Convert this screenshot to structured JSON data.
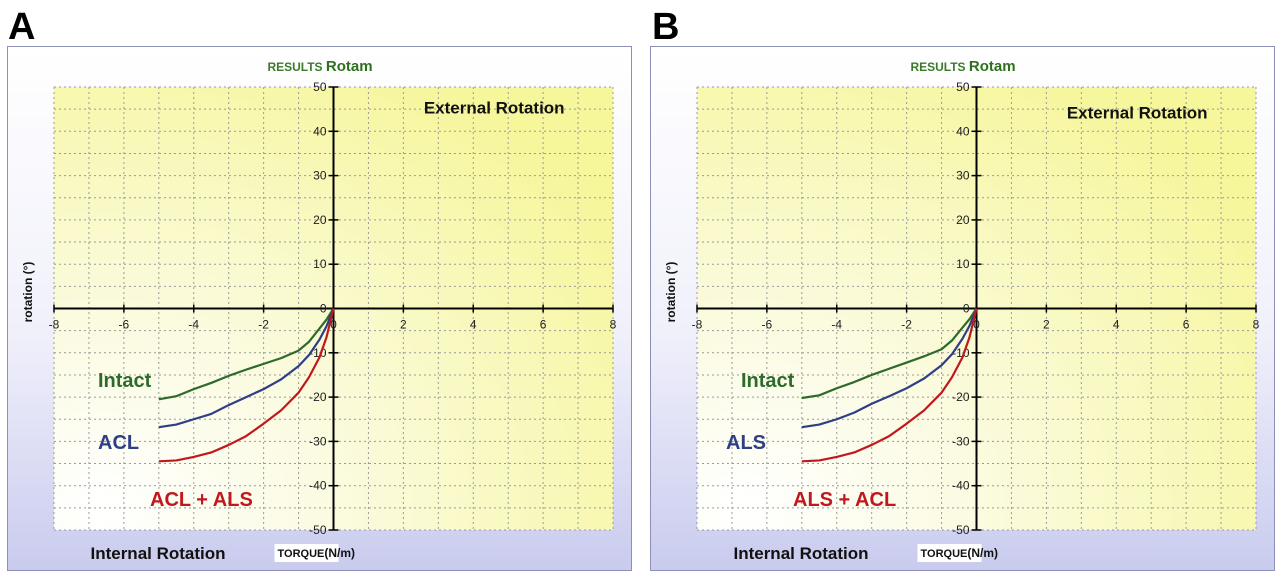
{
  "chart_data": [
    {
      "panel_letter": "A",
      "type": "line",
      "title_prefix": "RESULTS",
      "title": "Rotam",
      "xlabel_main": "TORQUE",
      "xlabel_unit": "(N/m)",
      "ylabel": "rotation (°)",
      "xlim": [
        -8,
        8
      ],
      "ylim": [
        -50,
        50
      ],
      "xticks": [
        "-8",
        "-6",
        "-4",
        "-2",
        "0",
        "2",
        "4",
        "6",
        "8"
      ],
      "yticks": [
        "50",
        "40",
        "30",
        "20",
        "10",
        "0",
        "-10",
        "-20",
        "-30",
        "-40",
        "-50"
      ],
      "grid": true,
      "annotations": {
        "top_right": "External  Rotation",
        "bottom_left": "Internal  Rotation"
      },
      "series": [
        {
          "name": "Intact",
          "color": "#2e6b2a",
          "x": [
            -5.0,
            -4.5,
            -4.0,
            -3.5,
            -3.0,
            -2.5,
            -2.0,
            -1.5,
            -1.0,
            -0.7,
            -0.4,
            -0.2,
            0.0
          ],
          "y": [
            -20.5,
            -19.8,
            -18.2,
            -16.8,
            -15.2,
            -13.8,
            -12.5,
            -11.2,
            -9.5,
            -7.5,
            -4.5,
            -2.5,
            0.0
          ]
        },
        {
          "name": "ACL",
          "color": "#2e3f86",
          "x": [
            -5.0,
            -4.5,
            -4.0,
            -3.5,
            -3.0,
            -2.5,
            -2.0,
            -1.5,
            -1.0,
            -0.7,
            -0.4,
            -0.2,
            0.0
          ],
          "y": [
            -26.8,
            -26.2,
            -25.0,
            -23.8,
            -21.8,
            -20.0,
            -18.2,
            -16.0,
            -13.0,
            -10.5,
            -7.0,
            -4.0,
            0.0
          ]
        },
        {
          "name": "ACL + ALS",
          "color": "#c0181c",
          "x": [
            -5.0,
            -4.5,
            -4.0,
            -3.5,
            -3.0,
            -2.5,
            -2.0,
            -1.5,
            -1.0,
            -0.7,
            -0.4,
            -0.2,
            0.0
          ],
          "y": [
            -34.5,
            -34.3,
            -33.5,
            -32.5,
            -30.8,
            -28.8,
            -26.0,
            -23.0,
            -19.0,
            -15.5,
            -11.0,
            -6.5,
            0.0
          ]
        }
      ]
    },
    {
      "panel_letter": "B",
      "type": "line",
      "title_prefix": "RESULTS",
      "title": "Rotam",
      "xlabel_main": "TORQUE",
      "xlabel_unit": "(N/m)",
      "ylabel": "rotation (°)",
      "xlim": [
        -8,
        8
      ],
      "ylim": [
        -50,
        50
      ],
      "xticks": [
        "-8",
        "-6",
        "-4",
        "-2",
        "0",
        "2",
        "4",
        "6",
        "8"
      ],
      "yticks": [
        "50",
        "40",
        "30",
        "20",
        "10",
        "0",
        "-10",
        "-20",
        "-30",
        "-40",
        "-50"
      ],
      "grid": true,
      "annotations": {
        "top_right": "External  Rotation",
        "bottom_left": "Internal  Rotation"
      },
      "series": [
        {
          "name": "Intact",
          "color": "#2e6b2a",
          "x": [
            -5.0,
            -4.5,
            -4.0,
            -3.5,
            -3.0,
            -2.5,
            -2.0,
            -1.5,
            -1.0,
            -0.7,
            -0.4,
            -0.2,
            0.0
          ],
          "y": [
            -20.2,
            -19.6,
            -18.0,
            -16.6,
            -15.0,
            -13.6,
            -12.2,
            -10.8,
            -9.2,
            -7.2,
            -4.3,
            -2.4,
            0.0
          ]
        },
        {
          "name": "ALS",
          "color": "#2e3f86",
          "x": [
            -5.0,
            -4.5,
            -4.0,
            -3.5,
            -3.0,
            -2.5,
            -2.0,
            -1.5,
            -1.0,
            -0.7,
            -0.4,
            -0.2,
            0.0
          ],
          "y": [
            -26.8,
            -26.2,
            -25.0,
            -23.5,
            -21.5,
            -19.8,
            -18.0,
            -15.8,
            -12.8,
            -10.3,
            -6.8,
            -3.9,
            0.0
          ]
        },
        {
          "name": "ALS + ACL",
          "color": "#c0181c",
          "x": [
            -5.0,
            -4.5,
            -4.0,
            -3.5,
            -3.0,
            -2.5,
            -2.0,
            -1.5,
            -1.0,
            -0.7,
            -0.4,
            -0.2,
            0.0
          ],
          "y": [
            -34.5,
            -34.3,
            -33.5,
            -32.5,
            -30.8,
            -28.8,
            -26.0,
            -23.0,
            -19.0,
            -15.5,
            -11.0,
            -6.5,
            0.0
          ]
        }
      ]
    }
  ]
}
